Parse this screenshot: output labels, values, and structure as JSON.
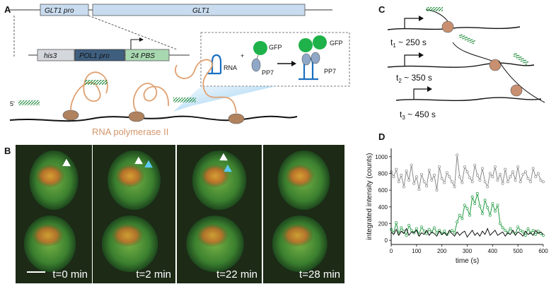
{
  "panels": {
    "a": "A",
    "b": "B",
    "c": "C",
    "d": "D"
  },
  "panel_a": {
    "glt1_pro": "GLT1 pro",
    "glt1": "GLT1",
    "his3": "his3",
    "pol1_pro": "POL1 pro",
    "pbs": "24 PBS",
    "rna": "RNA",
    "gfp_left": "GFP",
    "pp7_left": "PP7",
    "gfp_right": "GFP",
    "pp7_right": "PP7",
    "plus": "+",
    "five_prime": "5'",
    "pol_ii": "RNA polymerase II"
  },
  "panel_b": {
    "frames": [
      {
        "label": "t=0 min"
      },
      {
        "label": "t=2 min"
      },
      {
        "label": "t=22 min"
      },
      {
        "label": "t=28 min"
      }
    ]
  },
  "panel_c": {
    "t1": {
      "var": "t",
      "sub": "1",
      "rest": " ~ 250 s"
    },
    "t2": {
      "var": "t",
      "sub": "2",
      "rest": " ~ 350 s"
    },
    "t3": {
      "var": "t",
      "sub": "3",
      "rest": " ~ 450 s"
    }
  },
  "chart_data": {
    "type": "line",
    "xlabel": "time (s)",
    "ylabel": "integrated intensity (counts)",
    "xlim": [
      0,
      600
    ],
    "ylim": [
      -50,
      1100
    ],
    "xticks": [
      0,
      100,
      200,
      300,
      400,
      500,
      600
    ],
    "yticks": [
      0,
      200,
      400,
      600,
      800,
      1000
    ],
    "series": [
      {
        "color": "#8a8a8a",
        "x": [
          0,
          10,
          20,
          30,
          40,
          50,
          60,
          70,
          80,
          90,
          100,
          110,
          120,
          130,
          140,
          150,
          160,
          170,
          180,
          190,
          200,
          210,
          220,
          230,
          240,
          250,
          260,
          270,
          280,
          290,
          300,
          310,
          320,
          330,
          340,
          350,
          360,
          370,
          380,
          390,
          400,
          410,
          420,
          430,
          440,
          450,
          460,
          470,
          480,
          490,
          500,
          510,
          520,
          530,
          540,
          550,
          560,
          570,
          580,
          590,
          600
        ],
        "values": [
          820,
          760,
          850,
          700,
          780,
          640,
          830,
          720,
          900,
          680,
          760,
          610,
          790,
          700,
          650,
          840,
          720,
          780,
          600,
          880,
          740,
          690,
          810,
          760,
          700,
          640,
          1020,
          760,
          690,
          880,
          820,
          750,
          700,
          900,
          780,
          720,
          860,
          700,
          640,
          800,
          760,
          880,
          720,
          790,
          680,
          850,
          700,
          760,
          820,
          720,
          880,
          700,
          790,
          820,
          740,
          700,
          860,
          760,
          800,
          720,
          700
        ]
      },
      {
        "color": "#1f9a3f",
        "x": [
          0,
          10,
          20,
          30,
          40,
          50,
          60,
          70,
          80,
          90,
          100,
          110,
          120,
          130,
          140,
          150,
          160,
          170,
          180,
          190,
          200,
          210,
          220,
          230,
          240,
          250,
          260,
          270,
          280,
          290,
          300,
          310,
          320,
          330,
          340,
          350,
          360,
          370,
          380,
          390,
          400,
          410,
          420,
          430,
          440,
          450,
          460,
          470,
          480,
          490,
          500,
          510,
          520,
          530,
          540,
          550,
          560,
          570,
          580,
          590,
          600
        ],
        "values": [
          130,
          90,
          210,
          80,
          150,
          110,
          60,
          180,
          120,
          90,
          140,
          70,
          160,
          110,
          80,
          130,
          100,
          150,
          90,
          120,
          80,
          110,
          70,
          100,
          120,
          90,
          220,
          300,
          260,
          420,
          380,
          300,
          520,
          440,
          560,
          410,
          320,
          480,
          390,
          300,
          440,
          350,
          420,
          200,
          150,
          120,
          90,
          140,
          100,
          80,
          160,
          120,
          100,
          60,
          140,
          90,
          120,
          70,
          110,
          80,
          60
        ]
      },
      {
        "color": "#111111",
        "x": [
          0,
          10,
          20,
          30,
          40,
          50,
          60,
          70,
          80,
          90,
          100,
          110,
          120,
          130,
          140,
          150,
          160,
          170,
          180,
          190,
          200,
          210,
          220,
          230,
          240,
          250,
          260,
          270,
          280,
          290,
          300,
          310,
          320,
          330,
          340,
          350,
          360,
          370,
          380,
          390,
          400,
          410,
          420,
          430,
          440,
          450,
          460,
          470,
          480,
          490,
          500,
          510,
          520,
          530,
          540,
          550,
          560,
          570,
          580,
          590,
          600
        ],
        "values": [
          100,
          70,
          130,
          60,
          110,
          80,
          140,
          60,
          100,
          90,
          120,
          50,
          90,
          70,
          120,
          60,
          100,
          80,
          50,
          110,
          70,
          90,
          60,
          120,
          80,
          50,
          100,
          60,
          90,
          110,
          40,
          80,
          120,
          60,
          90,
          50,
          110,
          70,
          140,
          60,
          90,
          120,
          60,
          80,
          100,
          50,
          90,
          70,
          120,
          60,
          100,
          80,
          50,
          110,
          70,
          90,
          60,
          120,
          80,
          100,
          70
        ]
      }
    ]
  }
}
